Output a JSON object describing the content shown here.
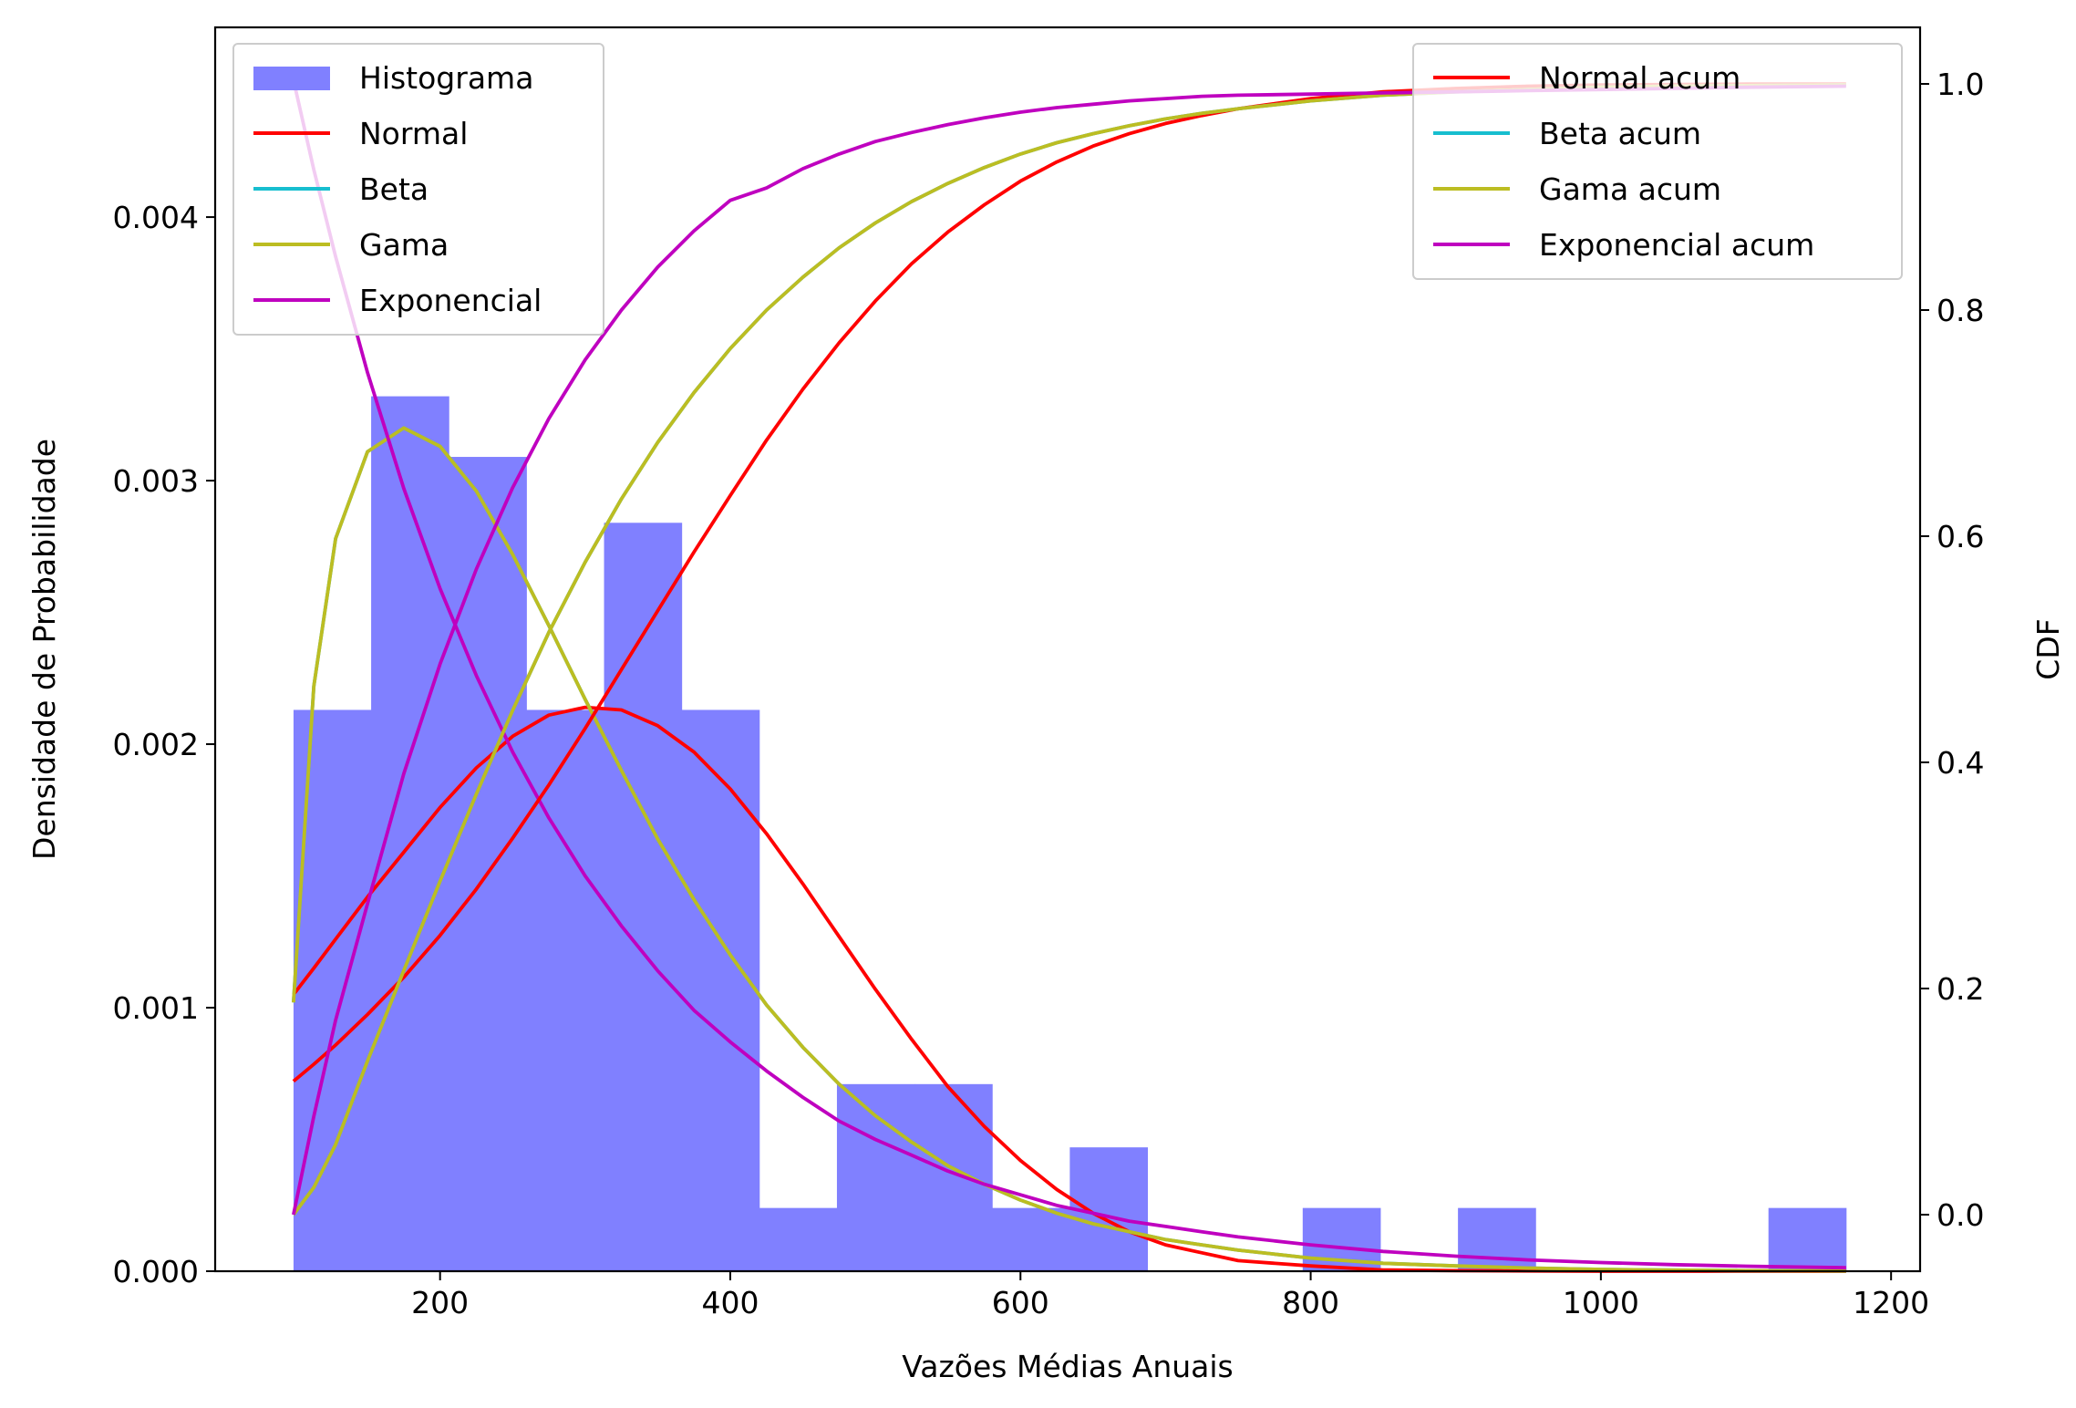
{
  "chart_data": {
    "type": "histogram+line",
    "xlabel": "Vazões Médias Anuais",
    "ylabel_left": "Densidade de Probabilidade",
    "ylabel_right": "CDF",
    "xlim": [
      45,
      1220
    ],
    "ylim_left": [
      0,
      0.00472
    ],
    "ylim_right": [
      -0.05,
      1.05
    ],
    "x_ticks": [
      200,
      400,
      600,
      800,
      1000,
      1200
    ],
    "x_tick_labels": [
      "200",
      "400",
      "600",
      "800",
      "1000",
      "1200"
    ],
    "y_left_ticks": [
      0,
      0.001,
      0.002,
      0.003,
      0.004
    ],
    "y_left_tick_labels": [
      "0.000",
      "0.001",
      "0.002",
      "0.003",
      "0.004"
    ],
    "y_right_ticks": [
      0,
      0.2,
      0.4,
      0.6,
      0.8,
      1.0
    ],
    "y_right_tick_labels": [
      "0.0",
      "0.2",
      "0.4",
      "0.6",
      "0.8",
      "1.0"
    ],
    "grid": false,
    "histogram": {
      "name": "Histograma",
      "color": "#8080ff",
      "bin_edges": [
        99,
        152.5,
        206,
        259.5,
        313,
        366.5,
        420,
        473.5,
        527,
        580.5,
        634,
        687.5,
        741,
        794.5,
        848,
        901.5,
        955,
        1008.5,
        1062,
        1115.5,
        1169
      ],
      "densities": [
        0.00213,
        0.00332,
        0.00309,
        0.00213,
        0.00284,
        0.00213,
        0.00024,
        0.00071,
        0.00071,
        0.00024,
        0.00047,
        0.0,
        0.0,
        0.00024,
        0.0,
        0.00024,
        0.0,
        0.0,
        0.0,
        0.00024
      ]
    },
    "x": [
      99,
      113,
      128,
      150,
      175,
      200,
      225,
      250,
      275,
      300,
      325,
      350,
      375,
      400,
      425,
      450,
      475,
      500,
      525,
      550,
      575,
      600,
      625,
      650,
      675,
      700,
      725,
      750,
      800,
      850,
      900,
      950,
      1000,
      1050,
      1100,
      1169
    ],
    "pdf_series": [
      {
        "name": "Normal",
        "color": "#ff0000",
        "values": [
          0.00105,
          0.00115,
          0.00126,
          0.00142,
          0.00159,
          0.00176,
          0.00191,
          0.00203,
          0.00211,
          0.00214,
          0.00213,
          0.00207,
          0.00197,
          0.00183,
          0.00166,
          0.00147,
          0.00127,
          0.00107,
          0.00088,
          0.0007,
          0.00055,
          0.00042,
          0.00031,
          0.00022,
          0.00015,
          0.0001,
          7e-05,
          4e-05,
          2e-05,
          5e-06,
          2e-06,
          1e-06,
          0.0,
          0.0,
          0.0,
          0.0
        ]
      },
      {
        "name": "Beta",
        "color": "#17becf",
        "values": [
          0.00102,
          0.00222,
          0.00278,
          0.00311,
          0.0032,
          0.00313,
          0.00296,
          0.00272,
          0.00245,
          0.00217,
          0.0019,
          0.00164,
          0.00141,
          0.0012,
          0.00101,
          0.00085,
          0.00071,
          0.00059,
          0.00049,
          0.0004,
          0.00033,
          0.00027,
          0.00022,
          0.00018,
          0.00015,
          0.00012,
          0.0001,
          8e-05,
          5e-05,
          3e-05,
          2e-05,
          1.2e-05,
          7e-06,
          4e-06,
          2e-06,
          1e-06
        ]
      },
      {
        "name": "Gama",
        "color": "#bcbd22",
        "values": [
          0.00102,
          0.00222,
          0.00278,
          0.00311,
          0.0032,
          0.00313,
          0.00296,
          0.00272,
          0.00245,
          0.00217,
          0.0019,
          0.00164,
          0.00141,
          0.0012,
          0.00101,
          0.00085,
          0.00071,
          0.00059,
          0.00049,
          0.0004,
          0.00033,
          0.00027,
          0.00022,
          0.00018,
          0.00015,
          0.00012,
          0.0001,
          8e-05,
          5e-05,
          3e-05,
          2e-05,
          1.2e-05,
          7e-06,
          4e-06,
          2e-06,
          1e-06
        ]
      },
      {
        "name": "Exponencial",
        "color": "#bf00bf",
        "values": [
          0.00452,
          0.00418,
          0.00385,
          0.00341,
          0.00297,
          0.00259,
          0.00226,
          0.00197,
          0.00172,
          0.0015,
          0.00131,
          0.00114,
          0.00099,
          0.00087,
          0.00076,
          0.00066,
          0.00057,
          0.0005,
          0.00044,
          0.00038,
          0.00033,
          0.00029,
          0.00025,
          0.00022,
          0.00019,
          0.00017,
          0.00015,
          0.00013,
          0.0001,
          7.5e-05,
          5.7e-05,
          4.3e-05,
          3.3e-05,
          2.5e-05,
          1.9e-05,
          1.3e-05
        ]
      }
    ],
    "cdf_series": [
      {
        "name": "Normal acum",
        "color": "#ff0000",
        "values": [
          0.118,
          0.133,
          0.15,
          0.177,
          0.21,
          0.247,
          0.288,
          0.333,
          0.38,
          0.43,
          0.482,
          0.534,
          0.586,
          0.636,
          0.685,
          0.73,
          0.771,
          0.808,
          0.841,
          0.869,
          0.893,
          0.914,
          0.931,
          0.945,
          0.956,
          0.965,
          0.972,
          0.978,
          0.987,
          0.993,
          0.996,
          0.998,
          0.999,
          0.9995,
          0.9998,
          0.9999
        ]
      },
      {
        "name": "Beta acum",
        "color": "#17becf",
        "values": [
          0.0,
          0.024,
          0.062,
          0.136,
          0.216,
          0.295,
          0.372,
          0.446,
          0.515,
          0.577,
          0.633,
          0.683,
          0.727,
          0.766,
          0.8,
          0.829,
          0.855,
          0.877,
          0.896,
          0.912,
          0.926,
          0.938,
          0.948,
          0.956,
          0.963,
          0.969,
          0.974,
          0.978,
          0.985,
          0.99,
          0.993,
          0.995,
          0.997,
          0.998,
          0.9985,
          0.999
        ]
      },
      {
        "name": "Gama acum",
        "color": "#bcbd22",
        "values": [
          0.0,
          0.024,
          0.062,
          0.136,
          0.216,
          0.295,
          0.372,
          0.446,
          0.515,
          0.577,
          0.633,
          0.683,
          0.727,
          0.766,
          0.8,
          0.829,
          0.855,
          0.877,
          0.896,
          0.912,
          0.926,
          0.938,
          0.948,
          0.956,
          0.963,
          0.969,
          0.974,
          0.978,
          0.985,
          0.99,
          0.993,
          0.995,
          0.997,
          0.998,
          0.9985,
          0.999
        ]
      },
      {
        "name": "Exponencial acum",
        "color": "#bf00bf",
        "values": [
          0.0,
          0.087,
          0.172,
          0.275,
          0.39,
          0.487,
          0.571,
          0.643,
          0.704,
          0.756,
          0.8,
          0.838,
          0.87,
          0.897,
          0.908,
          0.925,
          0.938,
          0.949,
          0.957,
          0.964,
          0.97,
          0.975,
          0.979,
          0.982,
          0.985,
          0.987,
          0.989,
          0.99,
          0.991,
          0.992,
          0.993,
          0.994,
          0.995,
          0.996,
          0.997,
          0.998
        ]
      }
    ],
    "legend_left": {
      "placement": "upper left",
      "entries": [
        {
          "label": "Histograma",
          "color": "#8080ff",
          "kind": "patch"
        },
        {
          "label": "Normal",
          "color": "#ff0000",
          "kind": "line"
        },
        {
          "label": "Beta",
          "color": "#17becf",
          "kind": "line"
        },
        {
          "label": "Gama",
          "color": "#bcbd22",
          "kind": "line"
        },
        {
          "label": "Exponencial",
          "color": "#bf00bf",
          "kind": "line"
        }
      ]
    },
    "legend_right": {
      "placement": "upper right",
      "entries": [
        {
          "label": "Normal acum",
          "color": "#ff0000",
          "kind": "line"
        },
        {
          "label": "Beta acum",
          "color": "#17becf",
          "kind": "line"
        },
        {
          "label": "Gama acum",
          "color": "#bcbd22",
          "kind": "line"
        },
        {
          "label": "Exponencial acum",
          "color": "#bf00bf",
          "kind": "line"
        }
      ]
    }
  }
}
